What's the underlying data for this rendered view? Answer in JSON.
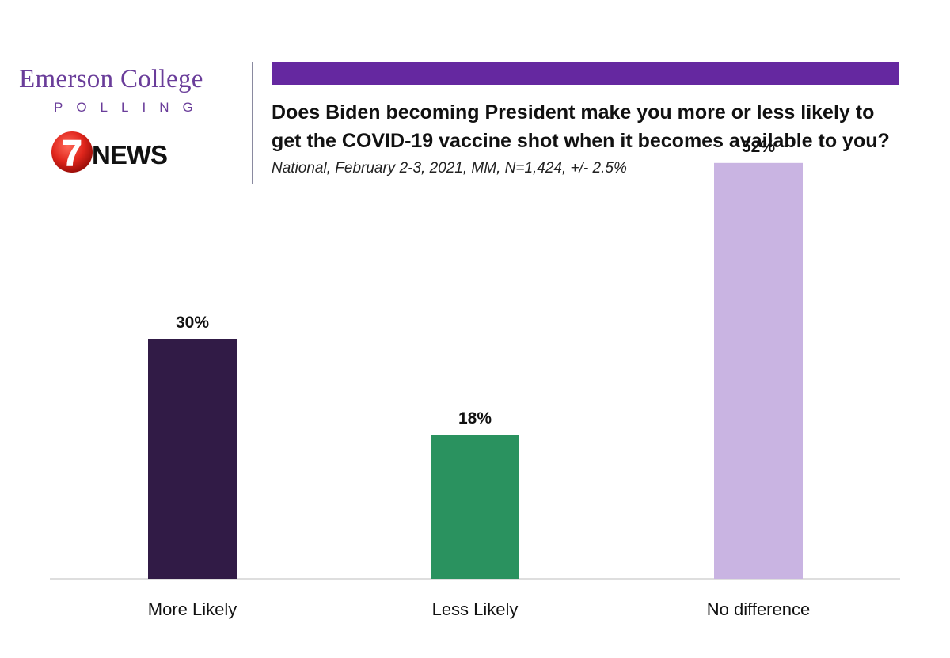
{
  "branding": {
    "org_name": "Emerson College",
    "org_sub": "POLLING",
    "news_number": "7",
    "news_name": "NEWS",
    "org_color": "#6a3d9a",
    "accent_bar_color": "#6528a0"
  },
  "chart_data": {
    "type": "bar",
    "title_lines": [
      "Does Biden becoming President make you more or less likely to",
      "get the COVID-19 vaccine shot when it becomes available to you?"
    ],
    "subtitle": "National, February 2-3, 2021, MM, N=1,424, +/- 2.5%",
    "categories": [
      "More Likely",
      "Less Likely",
      "No difference"
    ],
    "values": [
      30,
      18,
      52
    ],
    "value_labels": [
      "30%",
      "18%",
      "52%"
    ],
    "colors": [
      "#311b46",
      "#2a925f",
      "#c9b4e2"
    ],
    "ylim": [
      0,
      60
    ],
    "grid": false,
    "legend": "none"
  }
}
